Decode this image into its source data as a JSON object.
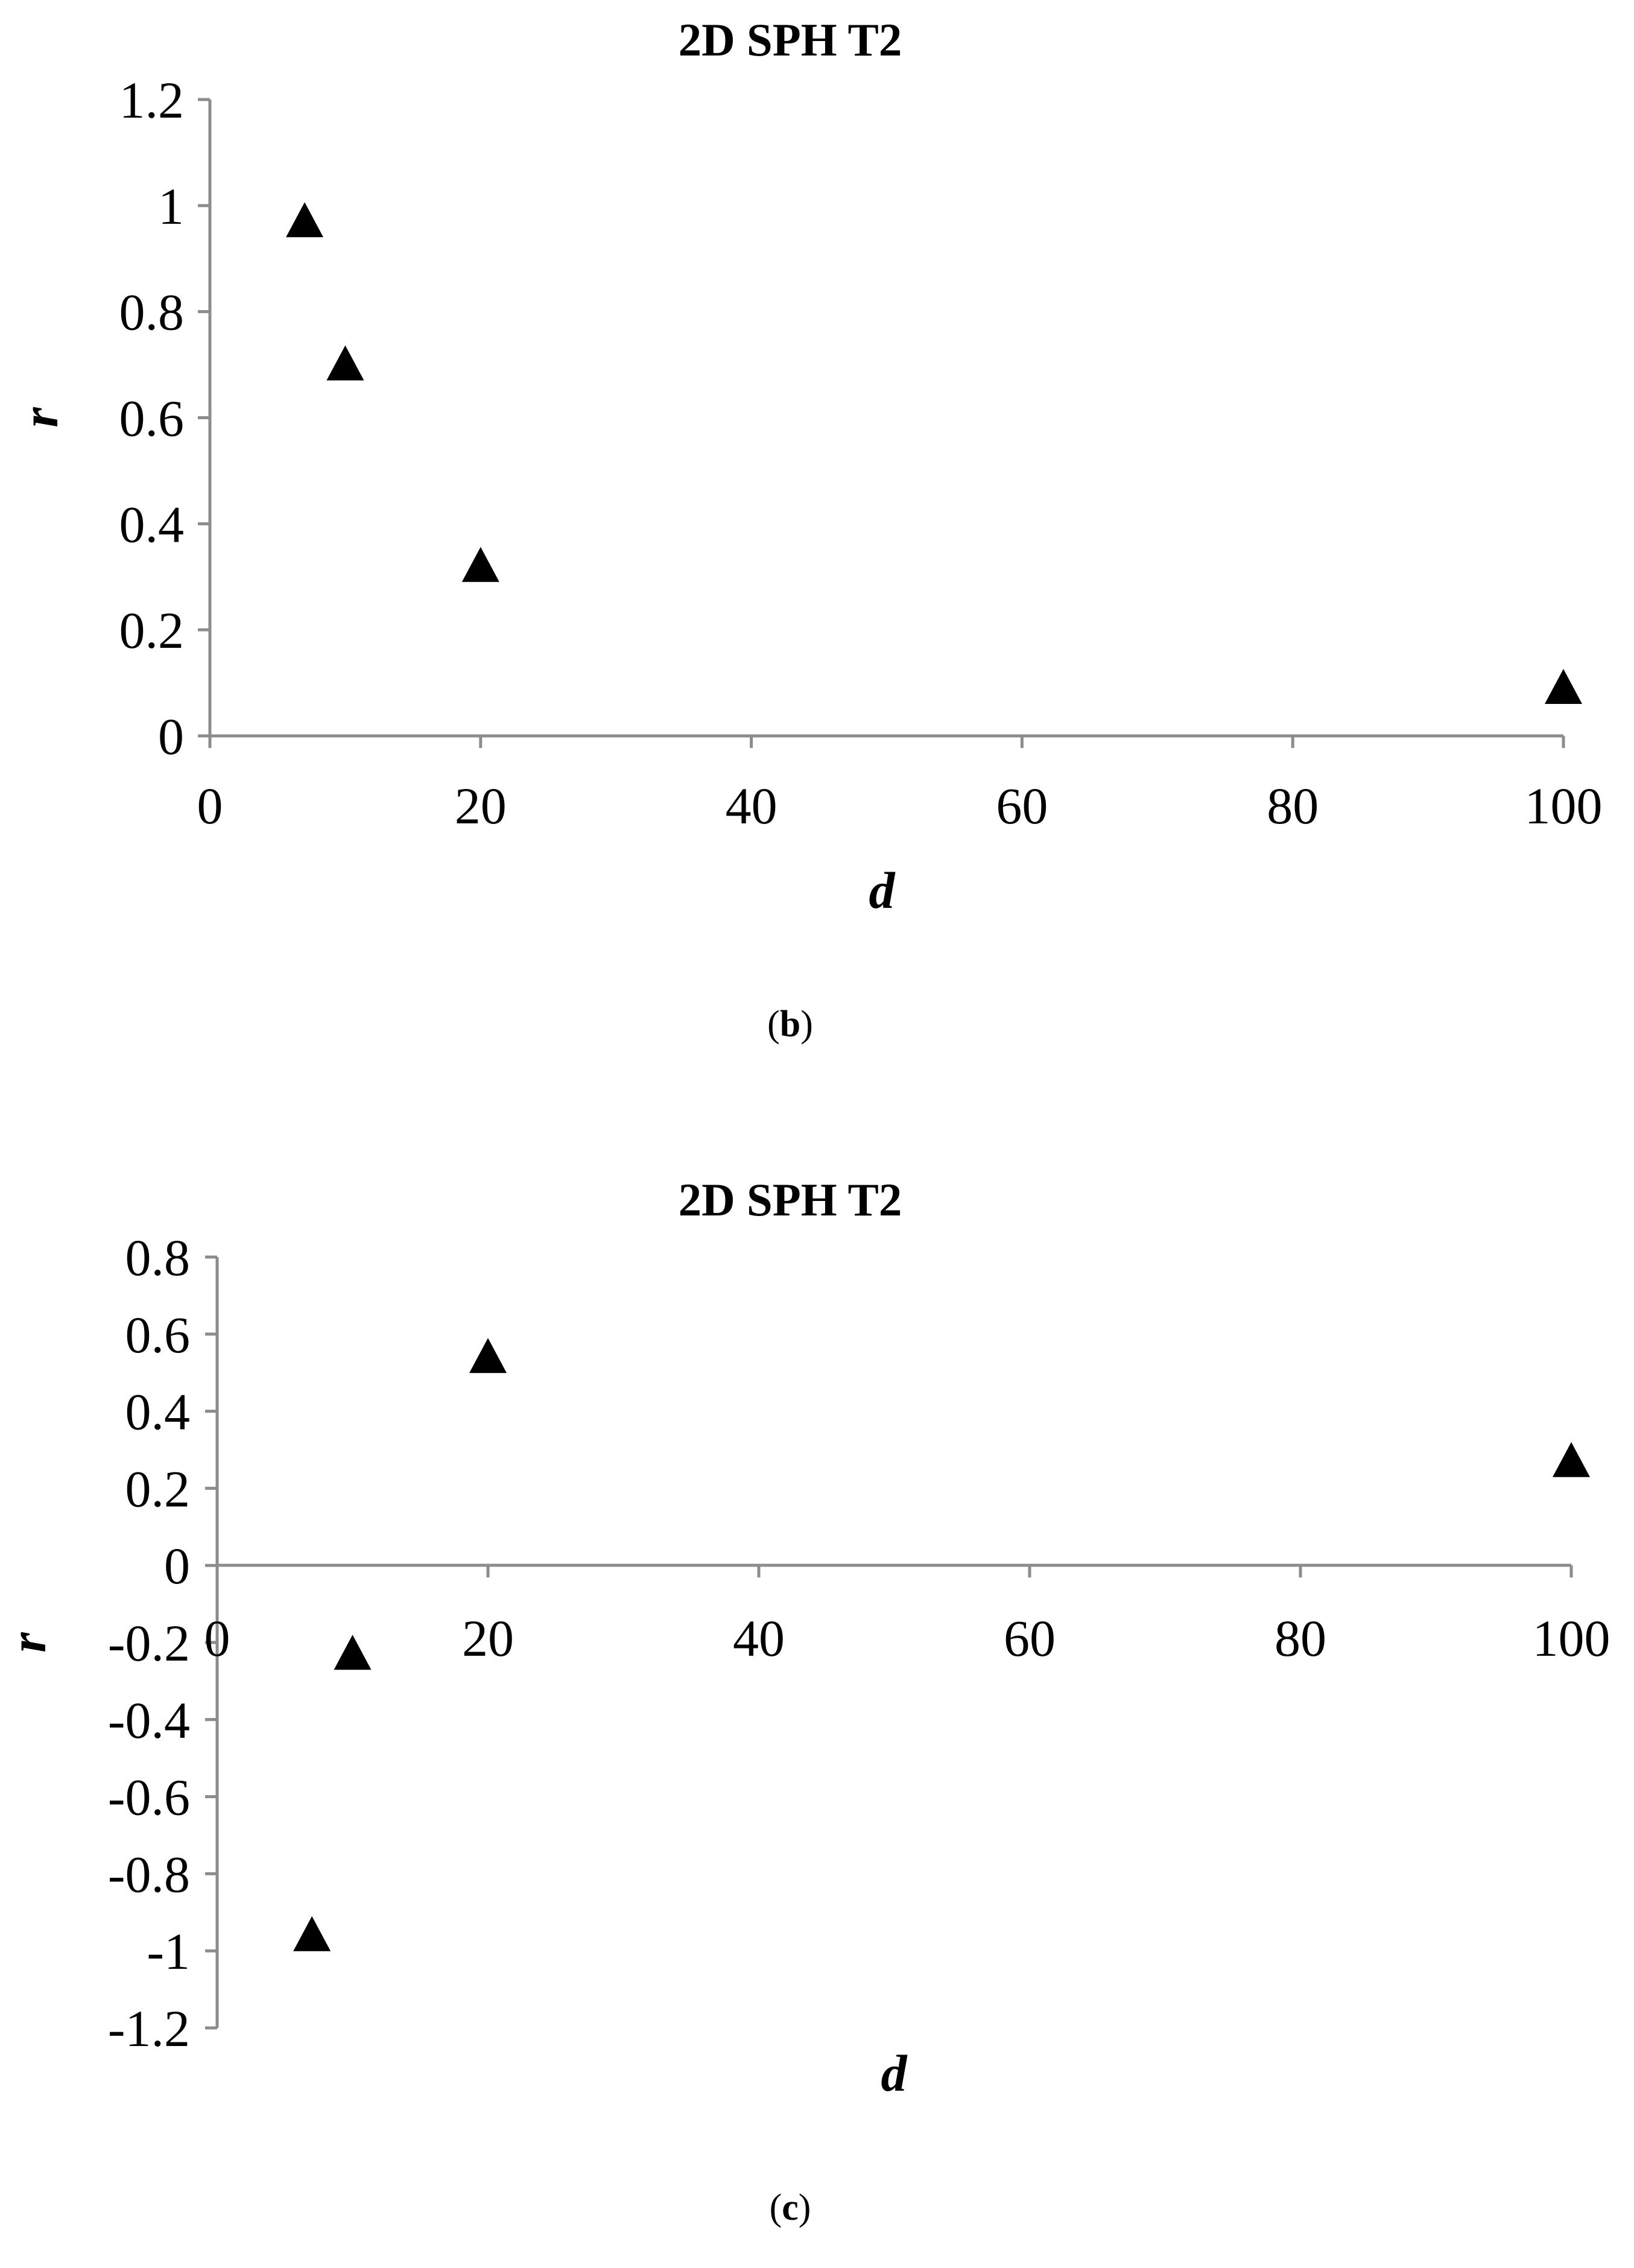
{
  "chart_data": [
    {
      "type": "scatter",
      "panel_label": "b",
      "title": "2D SPH T2",
      "xlabel": "d",
      "ylabel": "r",
      "xlim": [
        0,
        100
      ],
      "ylim": [
        0,
        1.2
      ],
      "xticks": [
        "0",
        "20",
        "40",
        "60",
        "80",
        "100"
      ],
      "yticks": [
        "0",
        "0.2",
        "0.4",
        "0.6",
        "0.8",
        "1",
        "1.2"
      ],
      "grid": false,
      "marker": "triangle",
      "marker_color": "#000000",
      "series": [
        {
          "x": [
            7,
            10,
            20,
            100
          ],
          "y": [
            0.97,
            0.7,
            0.32,
            0.09
          ]
        }
      ]
    },
    {
      "type": "scatter",
      "panel_label": "c",
      "title": "2D SPH T2",
      "xlabel": "d",
      "ylabel": "r",
      "xlim": [
        0,
        100
      ],
      "ylim": [
        -1.2,
        0.8
      ],
      "xticks": [
        "0",
        "20",
        "40",
        "60",
        "80",
        "100"
      ],
      "yticks": [
        "-1.2",
        "-1",
        "-0.8",
        "-0.6",
        "-0.4",
        "-0.2",
        "0",
        "0.2",
        "0.4",
        "0.6",
        "0.8"
      ],
      "grid": false,
      "marker": "triangle",
      "marker_color": "#000000",
      "series": [
        {
          "x": [
            7,
            10,
            20,
            100
          ],
          "y": [
            -0.96,
            -0.23,
            0.54,
            0.27
          ]
        }
      ]
    }
  ]
}
